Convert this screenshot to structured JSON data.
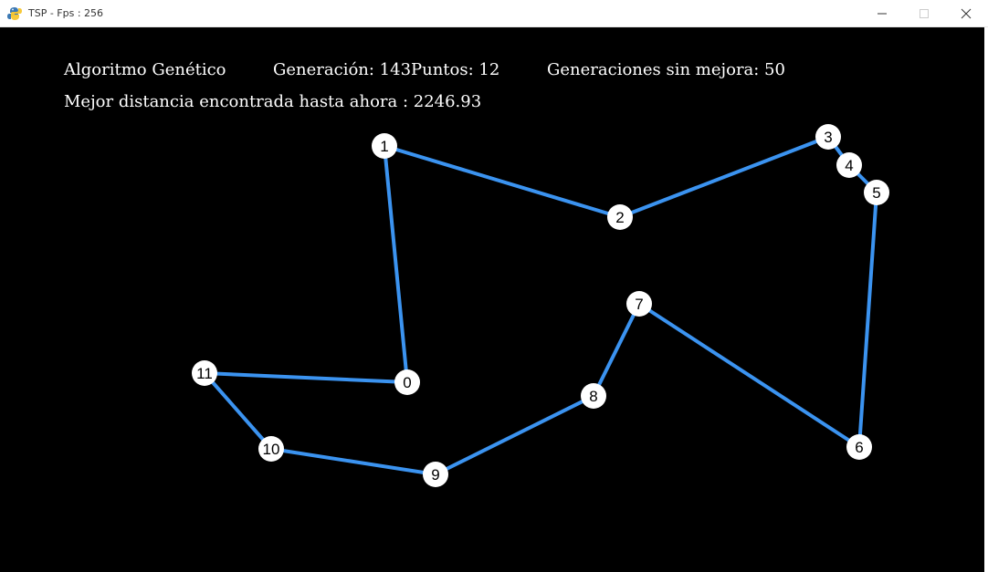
{
  "window": {
    "title": "TSP - Fps : 256",
    "app_icon": "pygame-snake-icon",
    "controls": {
      "minimize_icon": "minimize-icon",
      "maximize_icon": "maximize-icon",
      "close_icon": "close-icon"
    }
  },
  "hud": {
    "algorithm": "Algoritmo Genético",
    "generation": "Generación: 143",
    "points": "Puntos: 12",
    "no_improvement": "Generaciones sin mejora: 50",
    "best_distance": "Mejor distancia encontrada hasta ahora : 2246.93"
  },
  "colors": {
    "background": "#000000",
    "edge": "#3b93f0",
    "node_fill": "#ffffff",
    "node_text": "#000000",
    "hud_text": "#ffffff"
  },
  "route": {
    "nodes": [
      {
        "id": "0",
        "label": "0"
      },
      {
        "id": "1",
        "label": "1"
      },
      {
        "id": "2",
        "label": "2"
      },
      {
        "id": "3",
        "label": "3"
      },
      {
        "id": "4",
        "label": "4"
      },
      {
        "id": "5",
        "label": "5"
      },
      {
        "id": "6",
        "label": "6"
      },
      {
        "id": "7",
        "label": "7"
      },
      {
        "id": "8",
        "label": "8"
      },
      {
        "id": "9",
        "label": "9"
      },
      {
        "id": "10",
        "label": "10"
      },
      {
        "id": "11",
        "label": "11"
      }
    ],
    "tour": [
      "0",
      "1",
      "2",
      "3",
      "4",
      "5",
      "6",
      "7",
      "8",
      "9",
      "10",
      "11",
      "0"
    ]
  }
}
